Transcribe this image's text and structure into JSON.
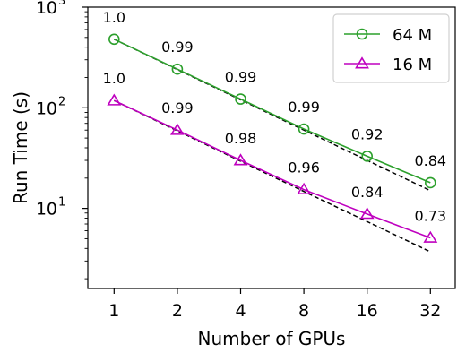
{
  "chart_data": {
    "type": "line",
    "xlabel": "Number of GPUs",
    "ylabel": "Run Time (s)",
    "x_scale": "log2",
    "y_scale": "log10",
    "x": [
      1,
      2,
      4,
      8,
      16,
      32
    ],
    "x_tick_labels": [
      "1",
      "2",
      "4",
      "8",
      "16",
      "32"
    ],
    "ylim": [
      1.6,
      1000
    ],
    "y_ticks": [
      {
        "value": 10,
        "base": "10",
        "exp": "1"
      },
      {
        "value": 100,
        "base": "10",
        "exp": "2"
      },
      {
        "value": 1000,
        "base": "10",
        "exp": "3"
      }
    ],
    "grid": false,
    "legend_position": "top-right",
    "series": [
      {
        "name": "64 M",
        "color": "#2ca02c",
        "marker": "circle",
        "values": [
          480,
          242,
          122,
          61.5,
          33,
          18
        ],
        "ideal": [
          480,
          240,
          120,
          60,
          30,
          15
        ],
        "labels": [
          "1.0",
          "0.99",
          "0.99",
          "0.99",
          "0.92",
          "0.84"
        ]
      },
      {
        "name": "16 M",
        "color": "#bf00bf",
        "marker": "triangle",
        "values": [
          118,
          60,
          30,
          15.4,
          8.8,
          5.1
        ],
        "ideal": [
          118,
          59,
          29.5,
          14.75,
          7.4,
          3.7
        ],
        "labels": [
          "1.0",
          "0.99",
          "0.98",
          "0.96",
          "0.84",
          "0.73"
        ]
      }
    ]
  }
}
